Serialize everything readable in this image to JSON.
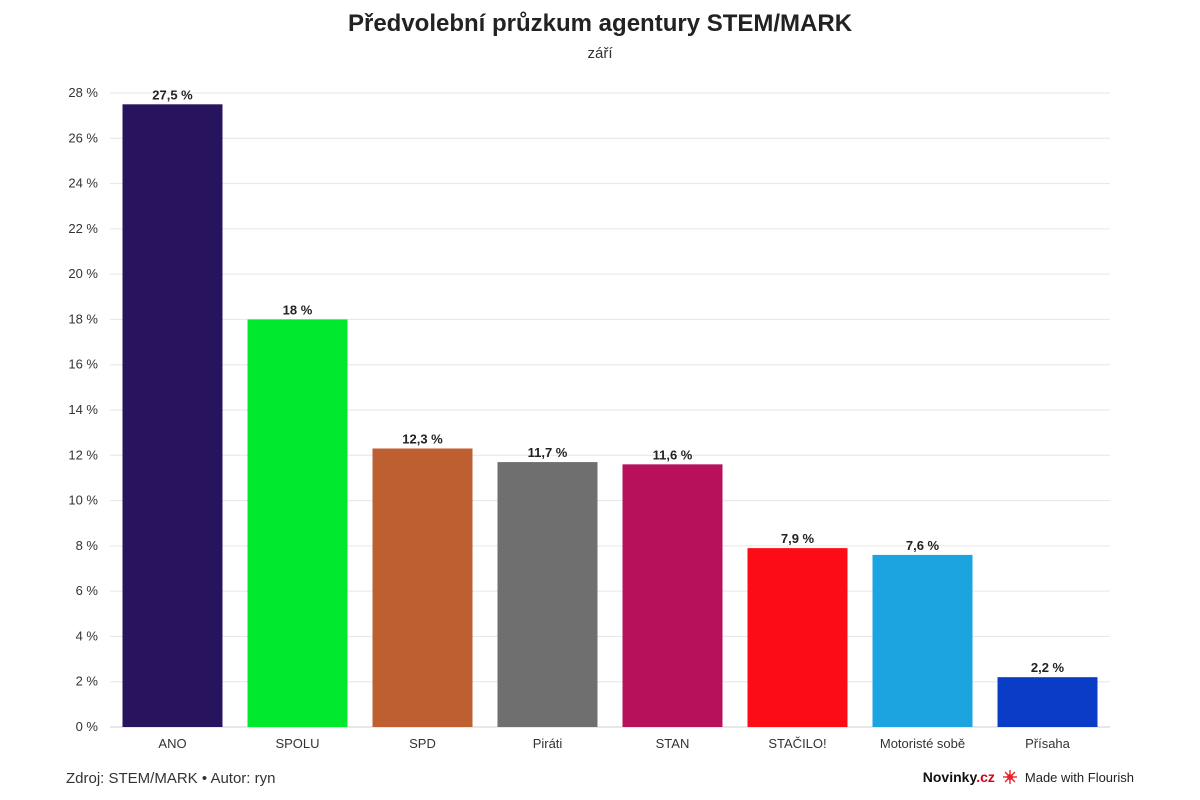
{
  "chart_data": {
    "type": "bar",
    "title": "Předvolební průzkum agentury STEM/MARK",
    "subtitle": "září",
    "categories": [
      "ANO",
      "SPOLU",
      "SPD",
      "Piráti",
      "STAN",
      "STAČILO!",
      "Motoristé sobě",
      "Přísaha"
    ],
    "values": [
      27.5,
      18,
      12.3,
      11.7,
      11.6,
      7.9,
      7.6,
      2.2
    ],
    "value_labels": [
      "27,5 %",
      "18 %",
      "12,3 %",
      "11,7 %",
      "11,6 %",
      "7,9 %",
      "7,6 %",
      "2,2 %"
    ],
    "colors": [
      "#28135e",
      "#00e92f",
      "#bd5f31",
      "#6f6f6f",
      "#b8115c",
      "#fb0c16",
      "#1ba4e0",
      "#0a3cc8"
    ],
    "ylim": [
      0,
      28
    ],
    "yticks": [
      0,
      2,
      4,
      6,
      8,
      10,
      12,
      14,
      16,
      18,
      20,
      22,
      24,
      26,
      28
    ],
    "ytick_labels": [
      "0 %",
      "2 %",
      "4 %",
      "6 %",
      "8 %",
      "10 %",
      "12 %",
      "14 %",
      "16 %",
      "18 %",
      "20 %",
      "22 %",
      "24 %",
      "26 %",
      "28 %"
    ],
    "grid": true,
    "xlabel": "",
    "ylabel": ""
  },
  "footer": {
    "source": "Zdroj: STEM/MARK • Autor: ryn",
    "brand_main": "Novinky",
    "brand_accent": ".cz",
    "flourish": "Made with Flourish"
  }
}
